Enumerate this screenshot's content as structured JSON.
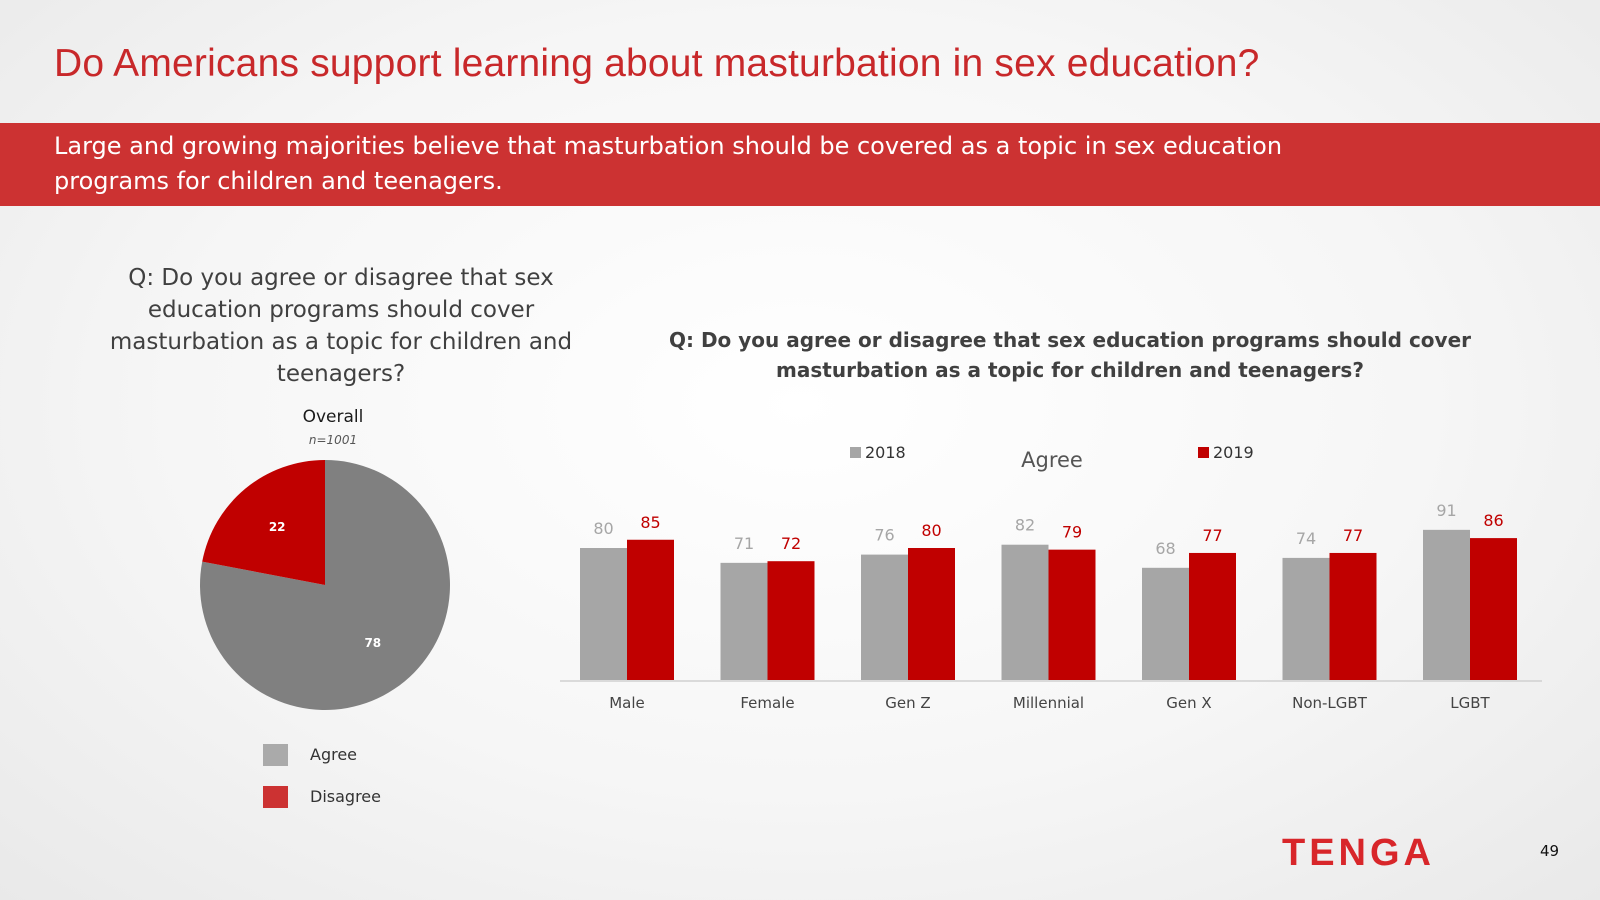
{
  "title": "Do Americans support learning about masturbation in sex education?",
  "banner": "Large and growing majorities believe that masturbation should be covered as a topic in sex education programs for children and teenagers.",
  "page_number": "49",
  "logo_text": "TENGA",
  "colors": {
    "title_red": "#c8282a",
    "banner_red": "#cc3232",
    "agree_gray": "#808080",
    "legend_gray": "#aaaaaa",
    "disagree_red": "#c00000",
    "series_2018": "#a6a6a6",
    "series_2019": "#c00000"
  },
  "pie": {
    "question": "Q: Do you agree or disagree that sex education programs should cover masturbation as a topic for children and teenagers?",
    "overall_label": "Overall",
    "n_label": "n=1001",
    "legend": [
      "Agree",
      "Disagree"
    ]
  },
  "bar": {
    "question": "Q: Do you agree or disagree that sex education programs should cover masturbation as a topic for children and teenagers?",
    "subtitle": "Agree"
  },
  "chart_data": [
    {
      "type": "pie",
      "title": "Overall",
      "subtitle": "n=1001",
      "slices": [
        {
          "label": "Agree",
          "value": 78,
          "color": "#808080"
        },
        {
          "label": "Disagree",
          "value": 22,
          "color": "#c00000"
        }
      ],
      "legend": "bottom"
    },
    {
      "type": "bar",
      "title": "Agree",
      "categories": [
        "Male",
        "Female",
        "Gen Z",
        "Millennial",
        "Gen X",
        "Non-LGBT",
        "LGBT"
      ],
      "series": [
        {
          "name": "2018",
          "values": [
            80,
            71,
            76,
            82,
            68,
            74,
            91
          ],
          "color": "#a6a6a6"
        },
        {
          "name": "2019",
          "values": [
            85,
            72,
            80,
            79,
            77,
            77,
            86
          ],
          "color": "#c00000"
        }
      ],
      "ylim": [
        0,
        100
      ],
      "grid": false,
      "legend": "top"
    }
  ]
}
